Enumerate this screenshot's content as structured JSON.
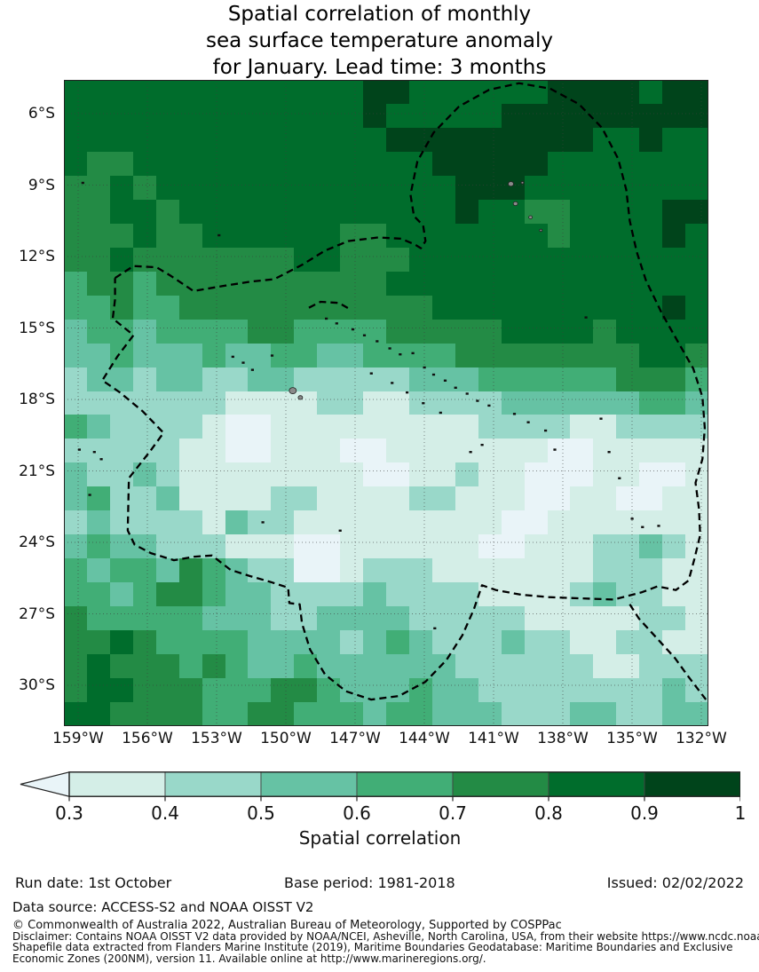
{
  "title": {
    "line1": "Spatial correlation of monthly",
    "line2": "sea surface temperature anomaly",
    "line3": "for January. Lead time: 3 months"
  },
  "chart_data": {
    "type": "heatmap",
    "title": "Spatial correlation of monthly sea surface temperature anomaly for January. Lead time: 3 months",
    "x_tick_labels": [
      "159°W",
      "156°W",
      "153°W",
      "150°W",
      "147°W",
      "144°W",
      "141°W",
      "138°W",
      "135°W",
      "132°W"
    ],
    "y_tick_labels": [
      "6°S",
      "9°S",
      "12°S",
      "15°S",
      "18°S",
      "21°S",
      "24°S",
      "27°S",
      "30°S"
    ],
    "lon_west_range": [
      159.6,
      131.7
    ],
    "lat_south_range": [
      4.6,
      31.7
    ],
    "levels": [
      0.3,
      0.4,
      0.5,
      0.6,
      0.7,
      0.8,
      0.9,
      1.0
    ],
    "palette": [
      "#e9f4f8",
      "#d4eee7",
      "#99d8c9",
      "#66c2a4",
      "#41ae76",
      "#238b45",
      "#006d2c",
      "#00441b"
    ],
    "colorbar": {
      "tick_labels": [
        "0.3",
        "0.4",
        "0.5",
        "0.6",
        "0.7",
        "0.8",
        "0.9",
        "1"
      ],
      "label": "Spatial correlation",
      "extend_min": true
    },
    "grid_legend": "each char = color bin index 0..7; 28 cols lon 159.6W->131.7W, 27 rows lat 4.6S->31.7S",
    "grid": [
      "6666666666666776666667777677",
      "6666666666666766666777777777",
      "6666666666666677777777766766",
      "6556666666666666777776666666",
      "5565666666666666677766666666",
      "5566566666666666676655666677",
      "5556556666665566666665666676",
      "5565555555665556666666666666",
      "4554555555555566666666666666",
      "4454455555555555666666666676",
      "3443444455444455555666656666",
      "3343334334433444455555555665",
      "2332332233222223334444445554",
      "2222222111122112222333333443",
      "4322221001111111112222112222",
      "2222211001110011111110011111",
      "3223211111111001121100011001",
      "3422311112211112211100110011",
      "2322221322111111111001111111",
      "3433222111001111110011122321",
      "4344354322001222111111122211",
      "4434554332222322221111232211",
      "5444443332233332222211111221",
      "5565444433332343222322112211",
      "5655545433433333322222211222",
      "5665554445543334332222222232",
      "6655554455444344333222332233"
    ],
    "eez_boundary": [
      [
        157.4,
        12.9
      ],
      [
        156.6,
        12.4
      ],
      [
        155.6,
        12.45
      ],
      [
        155.0,
        12.8
      ],
      [
        154.0,
        13.45
      ],
      [
        152.8,
        13.25
      ],
      [
        151.5,
        13.05
      ],
      [
        150.5,
        12.95
      ],
      [
        149.3,
        12.35
      ],
      [
        148.3,
        11.75
      ],
      [
        147.3,
        11.35
      ],
      [
        146.0,
        11.2
      ],
      [
        145.0,
        11.25
      ],
      [
        144.4,
        11.5
      ],
      [
        144.15,
        11.65
      ],
      [
        143.95,
        11.35
      ],
      [
        144.05,
        10.7
      ],
      [
        144.45,
        10.3
      ],
      [
        144.6,
        9.4
      ],
      [
        144.3,
        8.0
      ],
      [
        143.6,
        6.8
      ],
      [
        142.5,
        5.7
      ],
      [
        141.2,
        5.0
      ],
      [
        139.9,
        4.72
      ],
      [
        138.55,
        4.95
      ],
      [
        137.3,
        5.6
      ],
      [
        136.3,
        6.6
      ],
      [
        135.6,
        7.9
      ],
      [
        135.25,
        9.2
      ],
      [
        135.1,
        10.5
      ],
      [
        134.8,
        11.8
      ],
      [
        134.4,
        13.0
      ],
      [
        133.7,
        14.4
      ],
      [
        133.0,
        15.6
      ],
      [
        132.35,
        16.7
      ],
      [
        131.95,
        17.9
      ],
      [
        131.85,
        19.2
      ],
      [
        131.95,
        20.5
      ],
      [
        132.25,
        21.5
      ],
      [
        132.1,
        22.6
      ],
      [
        132.05,
        23.7
      ],
      [
        132.3,
        24.7
      ],
      [
        132.55,
        25.6
      ],
      [
        133.1,
        26.0
      ],
      [
        133.9,
        25.85
      ],
      [
        134.6,
        26.1
      ],
      [
        135.8,
        26.4
      ],
      [
        137.2,
        26.35
      ],
      [
        138.6,
        26.3
      ],
      [
        139.8,
        26.2
      ],
      [
        140.9,
        26.0
      ],
      [
        141.5,
        25.8
      ],
      [
        141.85,
        26.8
      ],
      [
        142.35,
        27.9
      ],
      [
        143.05,
        28.95
      ],
      [
        143.95,
        29.85
      ],
      [
        145.1,
        30.45
      ],
      [
        146.3,
        30.6
      ],
      [
        147.4,
        30.25
      ],
      [
        148.3,
        29.55
      ],
      [
        148.95,
        28.5
      ],
      [
        149.3,
        27.4
      ],
      [
        149.4,
        26.6
      ],
      [
        149.85,
        26.55
      ],
      [
        149.9,
        25.9
      ],
      [
        150.7,
        25.65
      ],
      [
        151.6,
        25.4
      ],
      [
        152.4,
        25.15
      ],
      [
        153.2,
        24.55
      ],
      [
        153.95,
        24.6
      ],
      [
        154.85,
        24.75
      ],
      [
        155.85,
        24.45
      ],
      [
        156.55,
        24.1
      ],
      [
        156.85,
        23.5
      ],
      [
        156.8,
        21.3
      ],
      [
        155.9,
        20.2
      ],
      [
        155.3,
        19.4
      ],
      [
        156.2,
        18.5
      ],
      [
        157.2,
        17.7
      ],
      [
        157.95,
        17.2
      ],
      [
        157.3,
        16.2
      ],
      [
        156.6,
        15.3
      ],
      [
        157.5,
        14.6
      ],
      [
        157.4,
        13.8
      ],
      [
        157.4,
        12.9
      ]
    ],
    "eez_fragments": [
      [
        [
          149.0,
          14.15
        ],
        [
          148.5,
          13.9
        ],
        [
          147.7,
          13.95
        ],
        [
          147.15,
          14.25
        ]
      ],
      [
        [
          135.1,
          26.6
        ],
        [
          134.7,
          27.2
        ],
        [
          133.9,
          28.05
        ],
        [
          133.15,
          28.85
        ],
        [
          132.55,
          29.65
        ],
        [
          131.8,
          30.6
        ]
      ]
    ],
    "islands_gray": [
      [
        149.7,
        17.63,
        8
      ],
      [
        149.37,
        17.92,
        5
      ],
      [
        140.25,
        8.95,
        6
      ],
      [
        139.75,
        8.9,
        3
      ],
      [
        140.05,
        9.78,
        5
      ],
      [
        139.4,
        10.35,
        4
      ],
      [
        138.95,
        10.9,
        3
      ]
    ],
    "islands_black": [
      [
        151.85,
        16.45
      ],
      [
        151.45,
        16.75
      ],
      [
        152.3,
        16.2
      ],
      [
        150.6,
        16.15
      ],
      [
        148.25,
        14.6
      ],
      [
        147.8,
        14.8
      ],
      [
        147.1,
        15.05
      ],
      [
        146.6,
        15.3
      ],
      [
        146.05,
        15.55
      ],
      [
        145.5,
        15.85
      ],
      [
        145.05,
        16.1
      ],
      [
        144.5,
        16.05
      ],
      [
        144.0,
        16.65
      ],
      [
        143.6,
        16.95
      ],
      [
        143.1,
        17.2
      ],
      [
        142.65,
        17.5
      ],
      [
        142.15,
        17.75
      ],
      [
        141.7,
        18.05
      ],
      [
        141.2,
        18.25
      ],
      [
        146.3,
        16.9
      ],
      [
        145.4,
        17.3
      ],
      [
        144.75,
        17.7
      ],
      [
        144.05,
        18.15
      ],
      [
        143.3,
        18.55
      ],
      [
        140.1,
        18.6
      ],
      [
        139.5,
        18.95
      ],
      [
        138.75,
        19.3
      ],
      [
        138.35,
        20.1
      ],
      [
        141.5,
        19.9
      ],
      [
        142.0,
        20.2
      ],
      [
        136.35,
        18.8
      ],
      [
        136.0,
        20.2
      ],
      [
        135.55,
        21.3
      ],
      [
        137.0,
        14.55
      ],
      [
        135.0,
        23.0
      ],
      [
        134.55,
        23.35
      ],
      [
        133.85,
        23.3
      ],
      [
        151.0,
        23.15
      ],
      [
        147.65,
        23.5
      ],
      [
        143.55,
        27.6
      ],
      [
        158.95,
        20.1
      ],
      [
        158.3,
        20.2
      ],
      [
        158.0,
        20.5
      ],
      [
        158.5,
        22.0
      ],
      [
        158.8,
        8.9
      ],
      [
        152.9,
        11.1
      ]
    ],
    "grid_on": true,
    "boundary_style": {
      "color": "#000000",
      "dash": "8 5"
    }
  },
  "footer": {
    "run_date": "Run date: 1st October",
    "base_period": "Base period: 1981-2018",
    "issued": "Issued: 02/02/2022",
    "data_source": "Data source: ACCESS-S2 and NOAA OISST V2",
    "copyright": "© Commonwealth of Australia 2022, Australian Bureau of Meteorology, Supported by COSPPac",
    "disclaimer": "Disclaimer: Contains NOAA OISST V2 data provided by NOAA/NCEI, Asheville, North Carolina, USA, from their website https://www.ncdc.noaa",
    "shapefile": "Shapefile data extracted from Flanders Marine Institute (2019), Maritime Boundaries Geodatabase: Maritime Boundaries and Exclusive",
    "economic": "Economic Zones (200NM), version 11. Available online at http://www.marineregions.org/."
  }
}
